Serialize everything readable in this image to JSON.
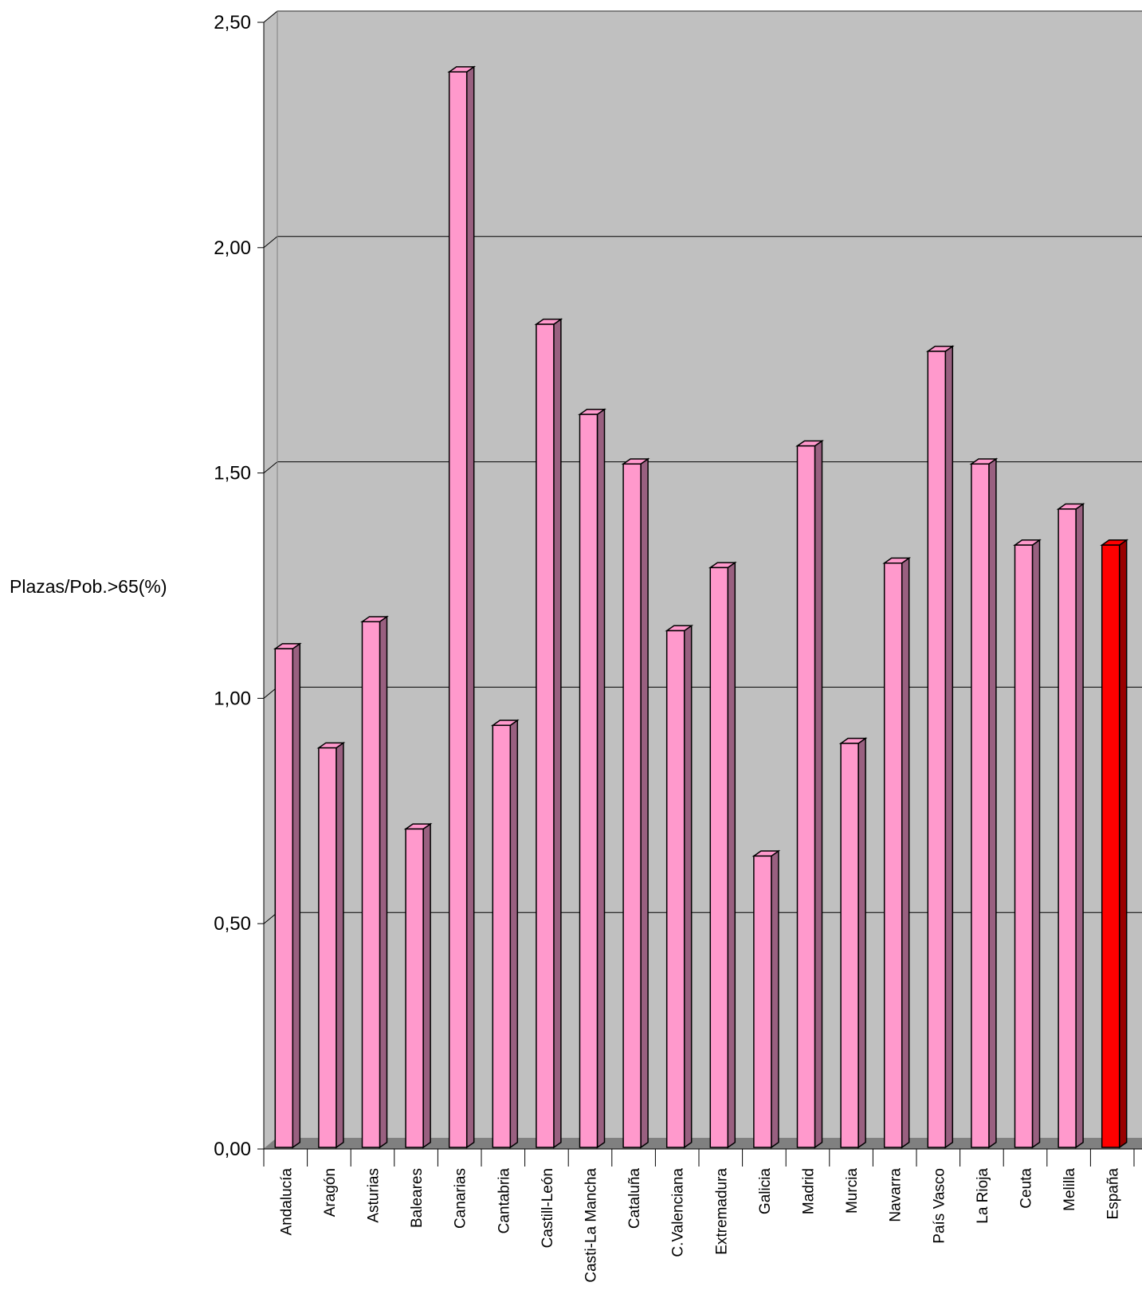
{
  "chart_data": {
    "type": "bar",
    "title": "",
    "xlabel": "",
    "ylabel": "Plazas/Pob.>65(%)",
    "ylim": [
      0,
      2.5
    ],
    "yticks": [
      "0,00",
      "0,50",
      "1,00",
      "1,50",
      "2,00",
      "2,50"
    ],
    "grid": true,
    "style": "3d-column",
    "colors": {
      "plot_background": "#c0c0c0",
      "floor": "#808080",
      "bar": "#ff99cc",
      "bar_side": "#996080",
      "highlight_bar": "#ff0000",
      "highlight_side": "#990000"
    },
    "highlight_category": "España",
    "categories": [
      "Andalucía",
      "Aragón",
      "Asturias",
      "Baleares",
      "Canarias",
      "Cantabria",
      "Castill-León",
      "Casti-La Mancha",
      "Cataluña",
      "C.Valenciana",
      "Extremadura",
      "Galicia",
      "Madrid",
      "Murcia",
      "Navarra",
      "País Vasco",
      "La Rioja",
      "Ceuta",
      "Melilla",
      "España"
    ],
    "values": [
      1.11,
      0.89,
      1.17,
      0.71,
      2.39,
      0.94,
      1.83,
      1.63,
      1.52,
      1.15,
      1.29,
      0.65,
      1.56,
      0.9,
      1.3,
      1.77,
      1.52,
      1.34,
      1.42,
      1.34
    ]
  }
}
